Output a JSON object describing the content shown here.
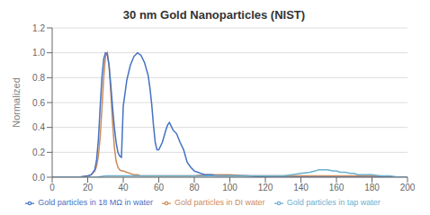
{
  "chart_data": {
    "type": "line",
    "title": "30 nm Gold Nanoparticles (NIST)",
    "ylabel": "Normalized",
    "xlim": [
      0,
      200
    ],
    "ylim": [
      0,
      1.2
    ],
    "xticks": [
      0,
      20,
      40,
      60,
      80,
      100,
      120,
      140,
      160,
      180,
      200
    ],
    "yticks": [
      {
        "value": 0.0,
        "label": "0.0"
      },
      0.2,
      0.4,
      0.6,
      0.8,
      {
        "value": 1.0,
        "label": "1.0"
      },
      1.2
    ],
    "grid": "y",
    "legend": "bottom",
    "series": [
      {
        "name": "Gold particles in DI water",
        "color": "#CD8B5A",
        "x": [
          0,
          15,
          20,
          22,
          24,
          25,
          26,
          27,
          28,
          29,
          30,
          31,
          32,
          33,
          34,
          35,
          36,
          37,
          38,
          39,
          40,
          42,
          44,
          46,
          48,
          50,
          52,
          54,
          56,
          58,
          60,
          62,
          64,
          66,
          68,
          70,
          72,
          74,
          76,
          78,
          80,
          85,
          90,
          95,
          100,
          110,
          120,
          130,
          140,
          150,
          160,
          170,
          180,
          190,
          200
        ],
        "values": [
          0.0,
          0.0,
          0.01,
          0.02,
          0.05,
          0.09,
          0.17,
          0.32,
          0.55,
          0.8,
          0.97,
          1.0,
          0.9,
          0.68,
          0.44,
          0.24,
          0.13,
          0.08,
          0.06,
          0.05,
          0.05,
          0.04,
          0.03,
          0.02,
          0.02,
          0.01,
          0.01,
          0.01,
          0.01,
          0.01,
          0.01,
          0.01,
          0.01,
          0.01,
          0.01,
          0.01,
          0.01,
          0.01,
          0.01,
          0.01,
          0.01,
          0.02,
          0.02,
          0.02,
          0.02,
          0.01,
          0.01,
          0.01,
          0.01,
          0.01,
          0.01,
          0.01,
          0.01,
          0.0,
          0.0
        ]
      },
      {
        "name": "Gold particles in 18 MΩ in water",
        "color": "#4472C4",
        "x": [
          0,
          15,
          20,
          22,
          24,
          25,
          26,
          27,
          28,
          29,
          30,
          31,
          32,
          33,
          34,
          35,
          36,
          37,
          38,
          39,
          40,
          42,
          44,
          46,
          48,
          50,
          52,
          54,
          55,
          56,
          57,
          58,
          59,
          60,
          62,
          64,
          65,
          66,
          68,
          70,
          72,
          74,
          75,
          76,
          78,
          80,
          82,
          84,
          86,
          88,
          90,
          92,
          94,
          96,
          98,
          100,
          110,
          120,
          130,
          140,
          150,
          160,
          170,
          180,
          190,
          200
        ],
        "values": [
          0.0,
          0.0,
          0.01,
          0.02,
          0.06,
          0.14,
          0.3,
          0.56,
          0.8,
          0.95,
          1.0,
          0.99,
          0.9,
          0.74,
          0.56,
          0.4,
          0.28,
          0.2,
          0.17,
          0.16,
          0.57,
          0.78,
          0.9,
          0.97,
          1.0,
          0.98,
          0.92,
          0.82,
          0.72,
          0.59,
          0.42,
          0.28,
          0.22,
          0.22,
          0.28,
          0.38,
          0.42,
          0.44,
          0.38,
          0.35,
          0.28,
          0.22,
          0.17,
          0.12,
          0.08,
          0.05,
          0.04,
          0.03,
          0.02,
          0.02,
          0.02,
          0.01,
          0.01,
          0.01,
          0.01,
          0.01,
          0.01,
          0.0,
          0.0,
          0.0,
          0.0,
          0.0,
          0.0,
          0.0,
          0.0,
          0.0
        ]
      },
      {
        "name": "Gold particles in tap water",
        "color": "#6AB0CF",
        "x": [
          0,
          15,
          20,
          25,
          30,
          35,
          40,
          45,
          50,
          55,
          60,
          65,
          70,
          75,
          80,
          85,
          90,
          95,
          100,
          105,
          110,
          115,
          120,
          125,
          130,
          135,
          140,
          145,
          148,
          150,
          152,
          155,
          158,
          160,
          162,
          165,
          168,
          170,
          172,
          175,
          178,
          180,
          185,
          190,
          195,
          200
        ],
        "values": [
          0.0,
          0.0,
          0.0,
          0.0,
          0.01,
          0.01,
          0.01,
          0.01,
          0.01,
          0.01,
          0.01,
          0.01,
          0.01,
          0.01,
          0.01,
          0.01,
          0.01,
          0.01,
          0.01,
          0.01,
          0.01,
          0.01,
          0.01,
          0.01,
          0.01,
          0.02,
          0.03,
          0.04,
          0.05,
          0.06,
          0.06,
          0.06,
          0.05,
          0.05,
          0.04,
          0.04,
          0.03,
          0.03,
          0.02,
          0.02,
          0.02,
          0.02,
          0.01,
          0.01,
          0.0,
          0.0
        ]
      }
    ]
  }
}
